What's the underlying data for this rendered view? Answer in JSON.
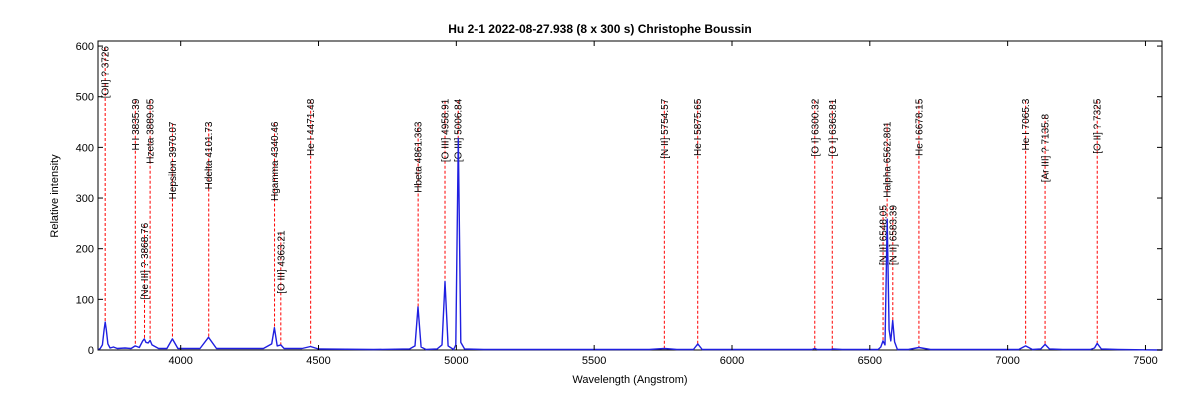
{
  "chart_data": {
    "type": "line",
    "title": "Hu 2-1  2022-08-27.938  (8 x 300 s)  Christophe Boussin",
    "xlabel": "Wavelength (Angstrom)",
    "ylabel": "Relative intensity",
    "xlim": [
      3700,
      7560
    ],
    "ylim": [
      0,
      610
    ],
    "xticks": [
      4000,
      4500,
      5000,
      5500,
      6000,
      6500,
      7000,
      7500
    ],
    "yticks": [
      0,
      100,
      200,
      300,
      400,
      500,
      600
    ],
    "grid": false,
    "colors": {
      "spectrum": "#1f1fe0",
      "markers": "#ff0000",
      "axes": "#000000"
    },
    "series": [
      {
        "x": [
          3700,
          3708,
          3716,
          3722,
          3726,
          3730,
          3736,
          3744,
          3756,
          3770,
          3798,
          3820,
          3835,
          3850,
          3862,
          3868,
          3874,
          3882,
          3889,
          3896,
          3920,
          3950,
          3970,
          3990,
          4030,
          4070,
          4101,
          4130,
          4200,
          4300,
          4330,
          4340,
          4350,
          4363,
          4375,
          4440,
          4471,
          4500,
          4700,
          4830,
          4850,
          4861,
          4872,
          4890,
          4930,
          4948,
          4959,
          4970,
          4990,
          4998,
          5007,
          5016,
          5030,
          5100,
          5400,
          5700,
          5755,
          5800,
          5860,
          5876,
          5892,
          5950,
          6100,
          6290,
          6300,
          6310,
          6360,
          6364,
          6400,
          6500,
          6530,
          6540,
          6548,
          6555,
          6563,
          6570,
          6576,
          6583,
          6590,
          6600,
          6640,
          6678,
          6720,
          6900,
          7040,
          7065,
          7090,
          7120,
          7136,
          7152,
          7200,
          7300,
          7315,
          7325,
          7340,
          7400,
          7560
        ],
        "y": [
          0,
          3,
          10,
          40,
          55,
          40,
          12,
          4,
          6,
          3,
          4,
          3,
          8,
          5,
          18,
          22,
          15,
          14,
          19,
          10,
          3,
          3,
          22,
          3,
          3,
          3,
          25,
          3,
          3,
          3,
          12,
          44,
          8,
          10,
          3,
          3,
          7,
          2,
          1,
          2,
          8,
          85,
          6,
          1,
          2,
          10,
          135,
          8,
          1,
          10,
          418,
          15,
          2,
          1,
          1,
          1,
          3,
          1,
          1,
          12,
          1,
          1,
          1,
          1,
          3,
          1,
          1,
          2,
          1,
          1,
          1,
          6,
          18,
          10,
          258,
          40,
          18,
          58,
          16,
          1,
          1,
          5,
          1,
          1,
          1,
          8,
          1,
          2,
          11,
          2,
          1,
          1,
          4,
          13,
          2,
          1,
          0
        ]
      }
    ],
    "lines": [
      {
        "x": 3726,
        "label": "[OII] ? 3726",
        "top": 604,
        "bottom": 56
      },
      {
        "x": 3835.39,
        "label": "H I 3835.39",
        "top": 500,
        "bottom": 8
      },
      {
        "x": 3868.76,
        "label": "[Ne III] ? 3868.76",
        "top": 255,
        "bottom": 22
      },
      {
        "x": 3889.05,
        "label": "Hzeta 3889.05",
        "top": 500,
        "bottom": 19
      },
      {
        "x": 3970.07,
        "label": "Hepsilon 3970.07",
        "top": 455,
        "bottom": 22
      },
      {
        "x": 4101.73,
        "label": "Hdelta 4101.73",
        "top": 455,
        "bottom": 25
      },
      {
        "x": 4340.46,
        "label": "Hgamma 4340.46",
        "top": 455,
        "bottom": 44
      },
      {
        "x": 4363.21,
        "label": "[O III] 4363.21",
        "top": 240,
        "bottom": 10
      },
      {
        "x": 4471.48,
        "label": "He I 4471.48",
        "top": 500,
        "bottom": 7
      },
      {
        "x": 4861.363,
        "label": "Hbeta 4861.363",
        "top": 455,
        "bottom": 85
      },
      {
        "x": 4958.91,
        "label": "[O III] 4958.91",
        "top": 500,
        "bottom": 135
      },
      {
        "x": 5006.84,
        "label": "[O III] 5006.84",
        "top": 500,
        "bottom": 418
      },
      {
        "x": 5754.57,
        "label": "[N II] 5754.57",
        "top": 500,
        "bottom": 3
      },
      {
        "x": 5875.65,
        "label": "He I 5875.65",
        "top": 500,
        "bottom": 12
      },
      {
        "x": 6300.32,
        "label": "[O I] 6300.32",
        "top": 500,
        "bottom": 3
      },
      {
        "x": 6363.81,
        "label": "[O I] 6363.81",
        "top": 500,
        "bottom": 2
      },
      {
        "x": 6548.05,
        "label": "[N II] 6548.05",
        "top": 290,
        "bottom": 18
      },
      {
        "x": 6562.801,
        "label": "Halpha 6562.801",
        "top": 455,
        "bottom": 258
      },
      {
        "x": 6583.39,
        "label": "[N II] 6583.39",
        "top": 290,
        "bottom": 58
      },
      {
        "x": 6678.15,
        "label": "He I 6678.15",
        "top": 500,
        "bottom": 5
      },
      {
        "x": 7065.3,
        "label": "He I 7065.3",
        "top": 500,
        "bottom": 8
      },
      {
        "x": 7135.8,
        "label": "[Ar III] ? 7135.8",
        "top": 470,
        "bottom": 11
      },
      {
        "x": 7325,
        "label": "[O II] ? 7325",
        "top": 500,
        "bottom": 13
      }
    ]
  }
}
